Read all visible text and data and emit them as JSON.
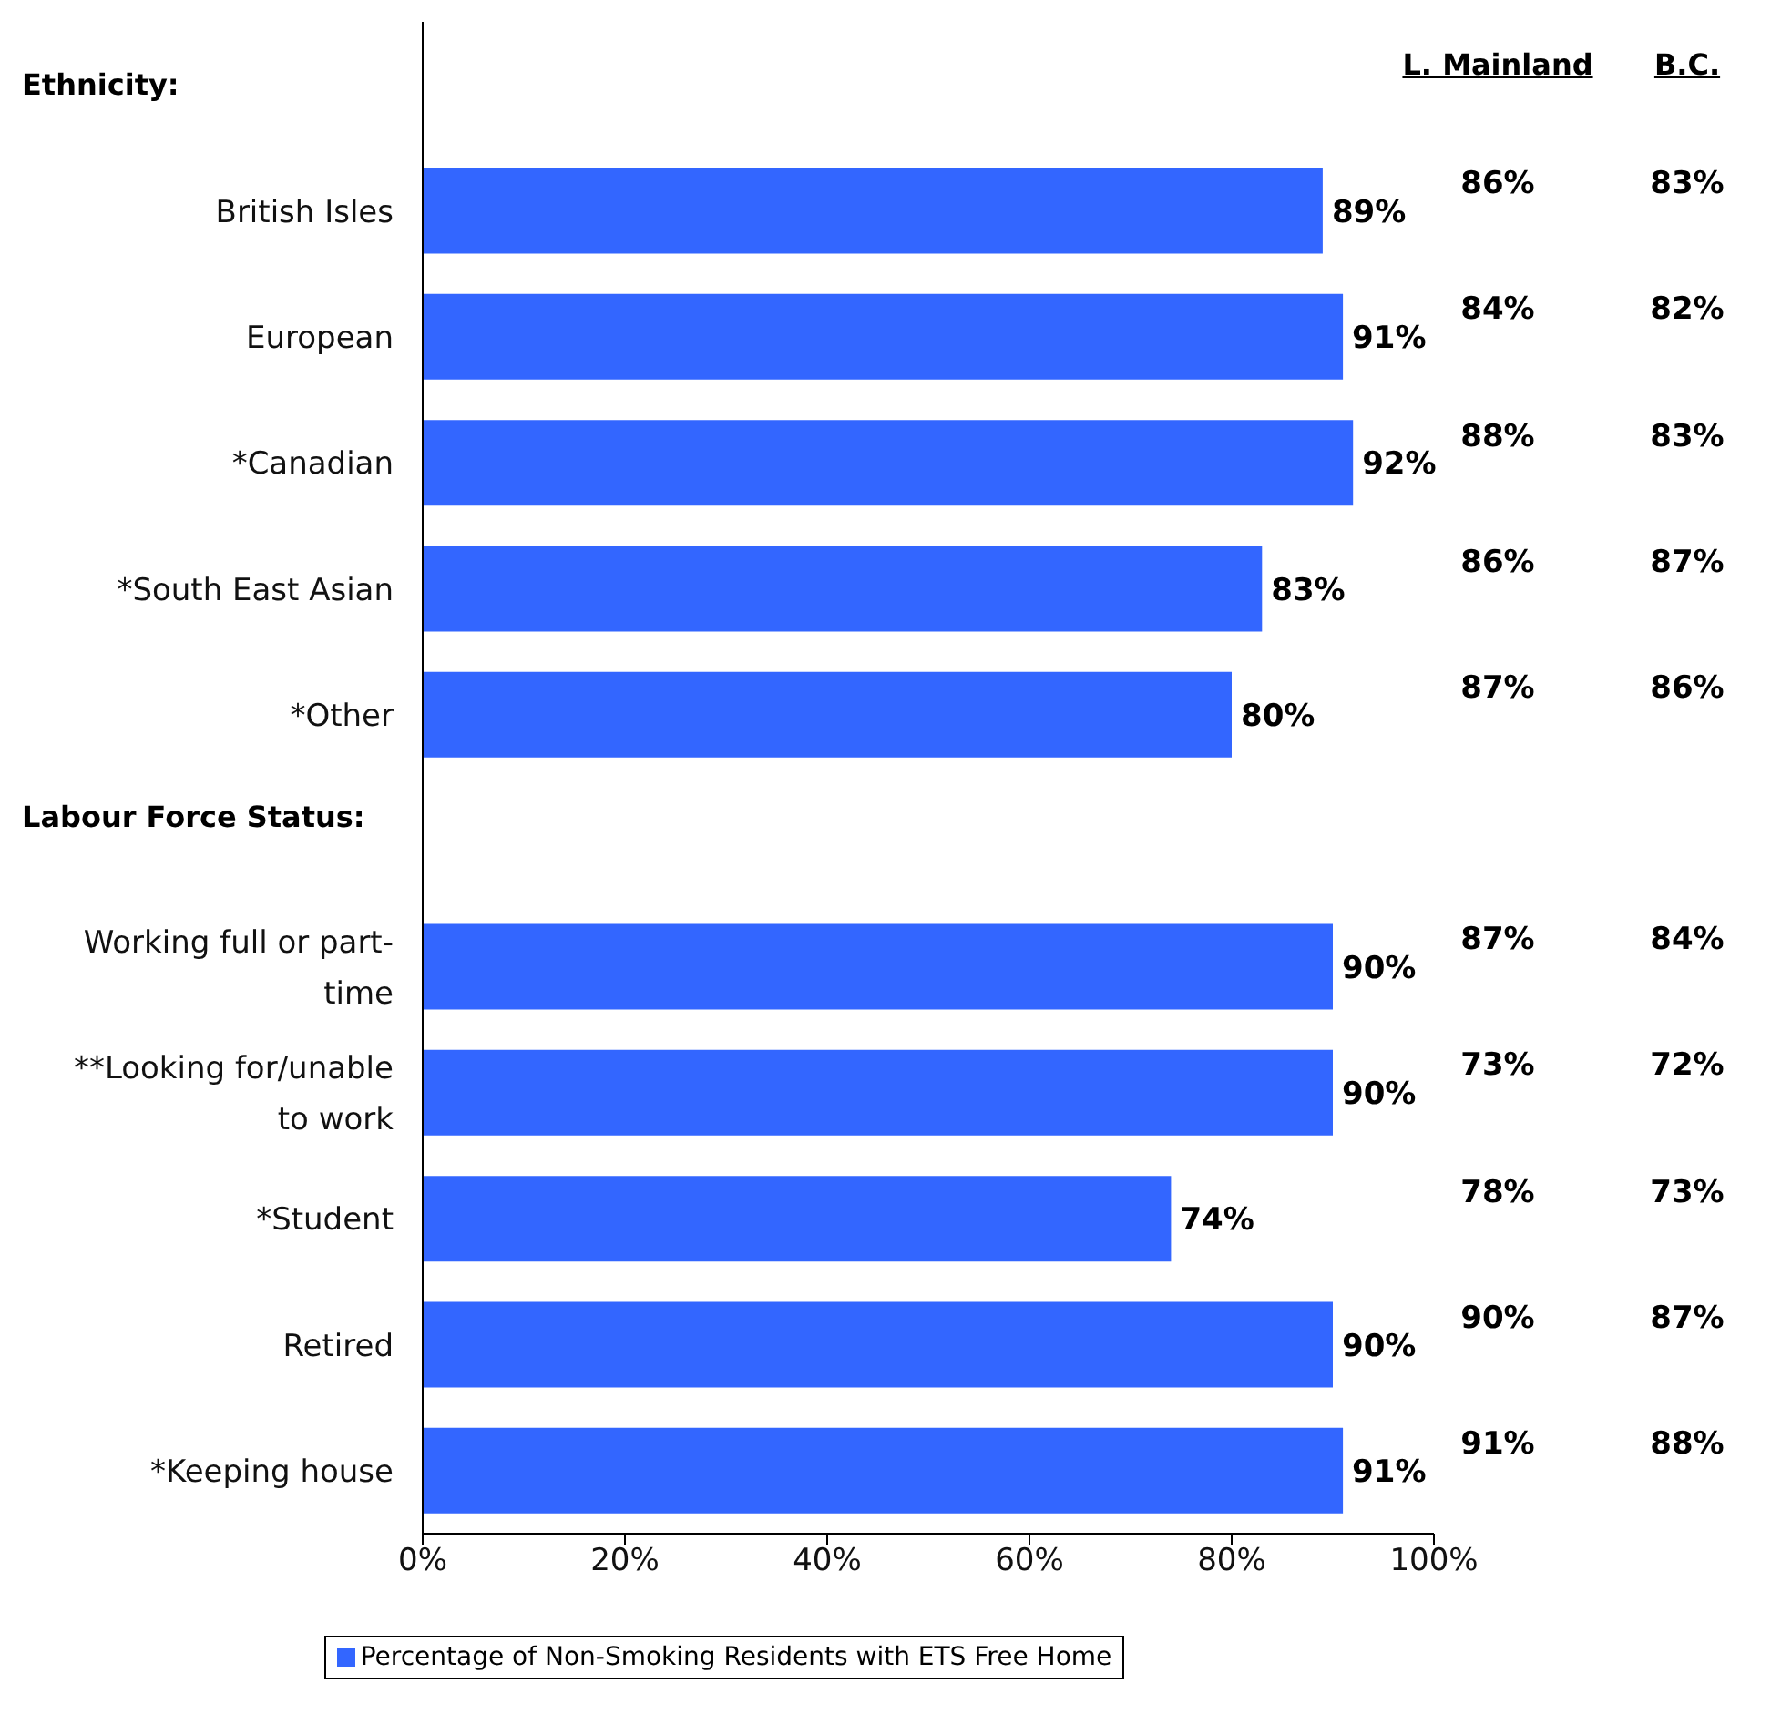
{
  "chart_data": {
    "type": "bar",
    "orientation": "horizontal",
    "categories": [
      null,
      "British Isles",
      "European",
      "*Canadian",
      "*South East Asian",
      "*Other",
      null,
      "Working full or part-time",
      "**Looking for/unable to work",
      "*Student",
      "Retired",
      "*Keeping house"
    ],
    "series": [
      {
        "name": "Percentage of Non-Smoking Residents with ETS Free Home",
        "color": "#3366ff",
        "values": [
          null,
          89,
          91,
          92,
          83,
          80,
          null,
          90,
          90,
          74,
          90,
          91
        ],
        "value_labels": [
          null,
          "89%",
          "91%",
          "92%",
          "83%",
          "80%",
          null,
          "90%",
          "90%",
          "74%",
          "90%",
          "91%"
        ]
      }
    ],
    "xlim": [
      0,
      100
    ],
    "xticks": [
      {
        "value": 0,
        "label": "0%"
      },
      {
        "value": 20,
        "label": "20%"
      },
      {
        "value": 40,
        "label": "40%"
      },
      {
        "value": 60,
        "label": "60%"
      },
      {
        "value": 80,
        "label": "80%"
      },
      {
        "value": 100,
        "label": "100%"
      }
    ],
    "grid": false,
    "legend": "bottom",
    "annotations": [
      "Ethnicity:",
      "Labour Force Status:",
      "L. Mainland",
      "B.C.",
      "86%",
      "83%",
      "84%",
      "82%",
      "88%",
      "83%",
      "86%",
      "87%",
      "87%",
      "86%",
      "87%",
      "84%",
      "73%",
      "72%",
      "78%",
      "73%",
      "90%",
      "87%",
      "91%",
      "88%"
    ]
  }
}
